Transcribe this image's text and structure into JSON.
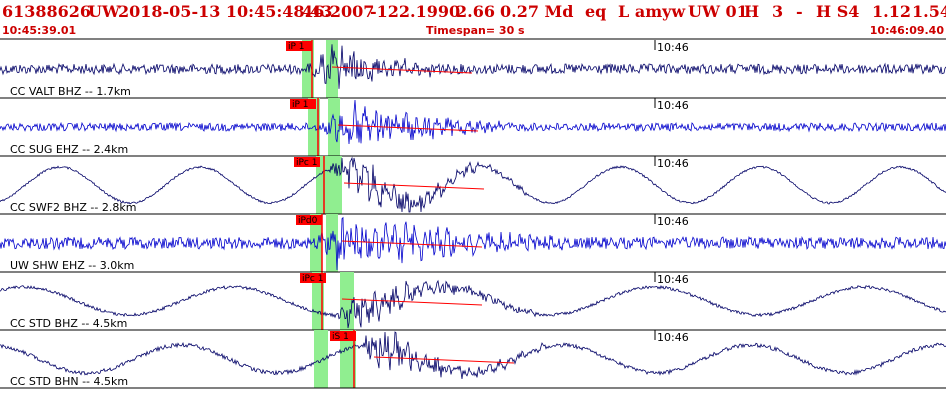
{
  "header": {
    "event_id": "61388626",
    "network": "UW",
    "datetime": "2018-05-13 10:45:48.43",
    "lat": "46.2007",
    "lon": "-122.1990",
    "depth": "2.66",
    "magnitude": "0.27 Md",
    "etype": "eq",
    "flag": "L amyw",
    "author": "UW 01",
    "quality": "H",
    "n": "3",
    "dash": "-",
    "hs": "H S4",
    "val1": "1.12",
    "val2": "1.54"
  },
  "subheader": {
    "start_time": "10:45:39.01",
    "timespan": "Timespan=  30 s",
    "end_time": "10:46:09.40"
  },
  "traces": [
    {
      "label": "CC VALT BHZ -- 1.7km",
      "pick": "iP 1",
      "minute_label": "10:46",
      "color": "#000066"
    },
    {
      "label": "CC SUG EHZ -- 2.4km",
      "pick": "iP 1",
      "minute_label": "10:46",
      "color": "#0000cc"
    },
    {
      "label": "CC SWF2 BHZ -- 2.8km",
      "pick": "iPc 1",
      "minute_label": "10:46",
      "color": "#000066"
    },
    {
      "label": "UW SHW EHZ -- 3.0km",
      "pick": "iPd0",
      "minute_label": "10:46",
      "color": "#0000cc"
    },
    {
      "label": "CC STD BHZ -- 4.5km",
      "pick": "iPc 1",
      "minute_label": "10:46",
      "color": "#000066"
    },
    {
      "label": "CC STD BHN -- 4.5km",
      "pick": "iS 1",
      "minute_label": "10:46",
      "color": "#000066"
    }
  ],
  "colors": {
    "header_text": "#cc0000",
    "pick_marker": "#ff0000",
    "window_shade": "#90ee90",
    "separator": "#000000"
  }
}
